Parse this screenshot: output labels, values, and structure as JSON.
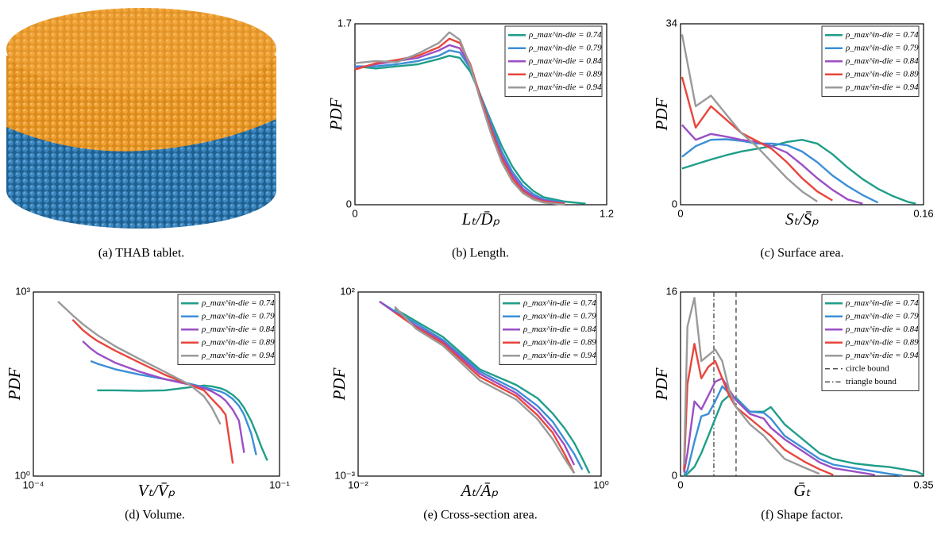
{
  "panel_a": {
    "caption": "(a)  THAB tablet."
  },
  "chart_data": [
    {
      "type": "line",
      "caption": "(b)  Length.",
      "xlabel": "Lₜ/D̄ₚ",
      "ylabel": "PDF",
      "xlim": [
        0,
        1.2
      ],
      "ylim": [
        0,
        1.7
      ],
      "xticks": [
        0,
        1.2
      ],
      "yticks": [
        0,
        1.7
      ],
      "legend": "upper right",
      "x": [
        0,
        0.1,
        0.2,
        0.3,
        0.4,
        0.45,
        0.5,
        0.55,
        0.6,
        0.65,
        0.7,
        0.75,
        0.8,
        0.85,
        0.9,
        1.0,
        1.1
      ],
      "series": [
        {
          "name": "ρ_max^in-die = 0.74",
          "color": "#1f9e89",
          "values": [
            1.3,
            1.28,
            1.3,
            1.32,
            1.37,
            1.4,
            1.38,
            1.25,
            1.02,
            0.78,
            0.55,
            0.36,
            0.22,
            0.13,
            0.07,
            0.03,
            0.01
          ]
        },
        {
          "name": "ρ_max^in-die = 0.79",
          "color": "#3b8fd6",
          "values": [
            1.3,
            1.3,
            1.32,
            1.35,
            1.4,
            1.45,
            1.43,
            1.28,
            1.02,
            0.75,
            0.5,
            0.31,
            0.18,
            0.1,
            0.05,
            0.02,
            null
          ]
        },
        {
          "name": "ρ_max^in-die = 0.84",
          "color": "#9b4fc4",
          "values": [
            1.28,
            1.32,
            1.35,
            1.38,
            1.45,
            1.5,
            1.47,
            1.3,
            1.0,
            0.72,
            0.46,
            0.28,
            0.15,
            0.08,
            0.04,
            0.01,
            null
          ]
        },
        {
          "name": "ρ_max^in-die = 0.89",
          "color": "#e8453c",
          "values": [
            1.27,
            1.33,
            1.36,
            1.4,
            1.48,
            1.56,
            1.52,
            1.32,
            1.0,
            0.7,
            0.43,
            0.25,
            0.13,
            0.06,
            0.03,
            0.01,
            null
          ]
        },
        {
          "name": "ρ_max^in-die = 0.94",
          "color": "#9a9a9a",
          "values": [
            1.33,
            1.35,
            1.34,
            1.42,
            1.52,
            1.62,
            1.55,
            1.3,
            0.97,
            0.66,
            0.4,
            0.22,
            0.11,
            0.05,
            0.02,
            0.0,
            null
          ]
        }
      ]
    },
    {
      "type": "line",
      "caption": "(c)  Surface area.",
      "xlabel": "Sₜ/S̄ₚ",
      "ylabel": "PDF",
      "xlim": [
        0,
        0.16
      ],
      "ylim": [
        0,
        34
      ],
      "xticks": [
        0,
        0.16
      ],
      "yticks": [
        0,
        34
      ],
      "legend": "upper right",
      "x": [
        0.001,
        0.01,
        0.02,
        0.03,
        0.04,
        0.05,
        0.06,
        0.07,
        0.08,
        0.09,
        0.1,
        0.11,
        0.12,
        0.13,
        0.14,
        0.15,
        0.155
      ],
      "series": [
        {
          "name": "ρ_max^in-die = 0.74",
          "color": "#1f9e89",
          "values": [
            6.8,
            7.6,
            8.5,
            9.3,
            10,
            10.5,
            11,
            11.8,
            12.2,
            11.5,
            9.5,
            7,
            4.8,
            3,
            1.6,
            0.5,
            0.2
          ]
        },
        {
          "name": "ρ_max^in-die = 0.79",
          "color": "#3b8fd6",
          "values": [
            9,
            11,
            12.2,
            12.3,
            12,
            11.5,
            11.5,
            11.2,
            10,
            8,
            5.5,
            3.5,
            1.8,
            0.4,
            null,
            null,
            null
          ]
        },
        {
          "name": "ρ_max^in-die = 0.84",
          "color": "#9b4fc4",
          "values": [
            15,
            12.2,
            13.3,
            12.8,
            12.2,
            11.8,
            11,
            9.8,
            7.5,
            5,
            2.8,
            1,
            0.2,
            null,
            null,
            null,
            null
          ]
        },
        {
          "name": "ρ_max^in-die = 0.89",
          "color": "#e8453c",
          "values": [
            24,
            14.5,
            18.5,
            16,
            13.5,
            12,
            10.5,
            8,
            5,
            2.5,
            0.8,
            null,
            null,
            null,
            null,
            null,
            null
          ]
        },
        {
          "name": "ρ_max^in-die = 0.94",
          "color": "#9a9a9a",
          "values": [
            32,
            18.5,
            20.5,
            17,
            13.5,
            11,
            8,
            5,
            2.5,
            0.6,
            null,
            null,
            null,
            null,
            null,
            null,
            null
          ]
        }
      ]
    },
    {
      "type": "line",
      "caption": "(d)  Volume.",
      "xlabel": "Vₜ/V̄ₚ",
      "ylabel": "PDF",
      "xscale": "log",
      "yscale": "log",
      "xlim": [
        0.0001,
        0.1
      ],
      "ylim": [
        1,
        1000
      ],
      "xticks": [
        {
          "value": 0.0001,
          "label": "10⁻⁴"
        },
        {
          "value": 0.1,
          "label": "10⁻¹"
        }
      ],
      "yticks": [
        {
          "value": 1,
          "label": "10⁰"
        },
        {
          "value": 1000,
          "label": "10³"
        }
      ],
      "legend": "upper right",
      "x": [
        0.0002,
        0.0003,
        0.0004,
        0.0005,
        0.0006,
        0.001,
        0.002,
        0.004,
        0.008,
        0.012,
        0.015,
        0.019,
        0.022,
        0.027,
        0.032,
        0.037,
        0.045,
        0.052,
        0.06,
        0.071
      ],
      "series": [
        {
          "name": "ρ_max^in-die = 0.74",
          "color": "#1f9e89",
          "values": [
            null,
            null,
            null,
            null,
            25,
            25,
            24.5,
            25,
            28,
            30,
            29,
            27,
            25,
            21,
            17,
            13,
            8,
            5,
            3,
            1.8
          ]
        },
        {
          "name": "ρ_max^in-die = 0.79",
          "color": "#3b8fd6",
          "values": [
            null,
            null,
            null,
            75,
            68,
            55,
            45,
            38,
            32,
            28,
            26,
            24,
            22,
            18,
            14,
            10,
            5,
            2.2,
            null,
            null
          ]
        },
        {
          "name": "ρ_max^in-die = 0.84",
          "color": "#9b4fc4",
          "values": [
            null,
            null,
            158,
            120,
            100,
            70,
            50,
            38,
            31,
            27,
            24,
            20,
            17,
            12,
            8,
            2.4,
            null,
            null,
            null,
            null
          ]
        },
        {
          "name": "ρ_max^in-die = 0.89",
          "color": "#e8453c",
          "values": [
            null,
            355,
            240,
            190,
            160,
            110,
            70,
            45,
            31,
            25,
            18,
            13,
            10,
            1.6,
            null,
            null,
            null,
            null,
            null,
            null
          ]
        },
        {
          "name": "ρ_max^in-die = 0.94",
          "color": "#9a9a9a",
          "values": [
            700,
            420,
            300,
            240,
            200,
            130,
            80,
            50,
            31,
            20,
            13,
            7,
            null,
            null,
            null,
            null,
            null,
            null,
            null,
            null
          ]
        }
      ]
    },
    {
      "type": "line",
      "caption": "(e)  Cross-section area.",
      "xlabel": "Aₜ/Āₚ",
      "ylabel": "PDF",
      "xscale": "log",
      "yscale": "log",
      "xlim": [
        0.01,
        1
      ],
      "ylim": [
        0.001,
        100
      ],
      "xticks": [
        {
          "value": 0.01,
          "label": "10⁻²"
        },
        {
          "value": 1,
          "label": "10⁰"
        }
      ],
      "yticks": [
        {
          "value": 0.001,
          "label": "10⁻³"
        },
        {
          "value": 100,
          "label": "10²"
        }
      ],
      "legend": "upper right",
      "x": [
        0.013,
        0.015,
        0.02,
        0.03,
        0.05,
        0.1,
        0.2,
        0.3,
        0.4,
        0.5,
        0.6,
        0.7,
        0.8
      ],
      "series": [
        {
          "name": "ρ_max^in-die = 0.74",
          "color": "#1f9e89",
          "values": [
            null,
            null,
            35,
            16,
            6,
            0.8,
            0.3,
            0.13,
            0.05,
            0.02,
            0.008,
            0.003,
            0.0012
          ]
        },
        {
          "name": "ρ_max^in-die = 0.79",
          "color": "#3b8fd6",
          "values": [
            null,
            55,
            30,
            14,
            5,
            0.7,
            0.22,
            0.08,
            0.03,
            0.01,
            0.004,
            0.0015,
            null
          ]
        },
        {
          "name": "ρ_max^in-die = 0.84",
          "color": "#9b4fc4",
          "values": [
            null,
            55,
            28,
            12,
            4.5,
            0.6,
            0.18,
            0.06,
            0.02,
            0.007,
            0.002,
            null,
            null
          ]
        },
        {
          "name": "ρ_max^in-die = 0.89",
          "color": "#e8453c",
          "values": [
            60,
            null,
            28,
            11,
            4,
            0.5,
            0.15,
            0.045,
            0.015,
            0.004,
            0.0012,
            null,
            null
          ]
        },
        {
          "name": "ρ_max^in-die = 0.94",
          "color": "#9a9a9a",
          "values": [
            null,
            null,
            40,
            10,
            3.5,
            0.4,
            0.12,
            0.035,
            0.01,
            0.003,
            0.0012,
            null,
            null
          ]
        }
      ]
    },
    {
      "type": "line",
      "caption": "(f)  Shape factor.",
      "xlabel": "Ḡₜ",
      "ylabel": "PDF",
      "xlim": [
        0,
        0.35
      ],
      "ylim": [
        0,
        16
      ],
      "xticks": [
        0,
        0.35
      ],
      "yticks": [
        0,
        16
      ],
      "legend": "upper right",
      "x": [
        0.005,
        0.01,
        0.02,
        0.03,
        0.04,
        0.05,
        0.06,
        0.07,
        0.08,
        0.1,
        0.12,
        0.13,
        0.15,
        0.18,
        0.2,
        0.22,
        0.25,
        0.28,
        0.3,
        0.32,
        0.34,
        0.35
      ],
      "series": [
        {
          "name": "ρ_max^in-die = 0.74",
          "color": "#1f9e89",
          "values": [
            0,
            0.2,
            0.8,
            2,
            3.5,
            5,
            6.5,
            7,
            6.8,
            5.6,
            5.6,
            6,
            4.5,
            3,
            2,
            1.5,
            1.1,
            0.9,
            0.8,
            0.6,
            0.4,
            0.1
          ]
        },
        {
          "name": "ρ_max^in-die = 0.79",
          "color": "#3b8fd6",
          "values": [
            0.1,
            0.5,
            3,
            5.2,
            5.4,
            6.5,
            7.8,
            7.2,
            6.7,
            5.6,
            5.5,
            5,
            3.5,
            2.3,
            1.5,
            1.0,
            0.7,
            0.4,
            0.2,
            0.05,
            null,
            null
          ]
        },
        {
          "name": "ρ_max^in-die = 0.84",
          "color": "#9b4fc4",
          "values": [
            0.3,
            2,
            6.5,
            5.8,
            7,
            8.2,
            8.5,
            7.5,
            6.6,
            5.4,
            5,
            4.2,
            3.2,
            2,
            1.2,
            0.7,
            0.4,
            0.1,
            null,
            null,
            null,
            null
          ]
        },
        {
          "name": "ρ_max^in-die = 0.89",
          "color": "#e8453c",
          "values": [
            0.5,
            8,
            11.5,
            8.5,
            9.5,
            10,
            8.5,
            7,
            6,
            5,
            4,
            3.5,
            2.3,
            1.2,
            0.6,
            0.1,
            null,
            null,
            null,
            null,
            null,
            null
          ]
        },
        {
          "name": "ρ_max^in-die = 0.94",
          "color": "#9a9a9a",
          "values": [
            1,
            13,
            15.5,
            10,
            10.5,
            11,
            10,
            7.5,
            6,
            4.5,
            3.5,
            2.8,
            1.5,
            0.7,
            0.2,
            null,
            null,
            null,
            null,
            null,
            null,
            null
          ]
        }
      ],
      "reference_lines": [
        {
          "name": "circle bound",
          "x": 0.08,
          "dash": "dashed",
          "color": "#333333"
        },
        {
          "name": "triangle bound",
          "x": 0.048,
          "dash": "dashdot",
          "color": "#333333"
        }
      ]
    }
  ]
}
